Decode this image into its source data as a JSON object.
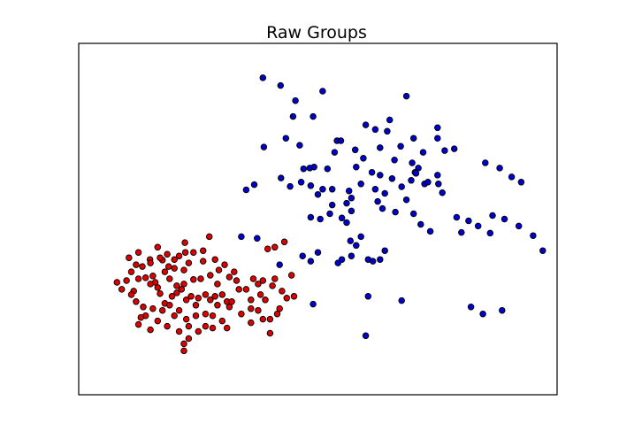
{
  "chart_data": {
    "type": "scatter",
    "title": "Raw Groups",
    "xlabel": "",
    "ylabel": "",
    "xlim": [
      0,
      100
    ],
    "ylim": [
      0,
      100
    ],
    "grid": false,
    "axes_ticks_visible": false,
    "series": [
      {
        "color": "#0000cc",
        "points": [
          [
            38.5,
            90.2
          ],
          [
            42.2,
            88.0
          ],
          [
            45.3,
            83.7
          ],
          [
            51.0,
            86.4
          ],
          [
            68.5,
            85.0
          ],
          [
            65.0,
            78.2
          ],
          [
            44.8,
            79.2
          ],
          [
            49.0,
            79.2
          ],
          [
            60.0,
            76.8
          ],
          [
            62.0,
            75.5
          ],
          [
            64.5,
            75.0
          ],
          [
            75.0,
            76.0
          ],
          [
            70.0,
            73.0
          ],
          [
            43.3,
            73.0
          ],
          [
            46.2,
            71.0
          ],
          [
            54.0,
            72.3
          ],
          [
            54.8,
            72.3
          ],
          [
            63.0,
            70.3
          ],
          [
            67.3,
            70.7
          ],
          [
            72.0,
            69.0
          ],
          [
            38.7,
            70.5
          ],
          [
            53.5,
            69.0
          ],
          [
            57.8,
            69.7
          ],
          [
            59.5,
            67.3
          ],
          [
            66.0,
            66.8
          ],
          [
            69.7,
            66.0
          ],
          [
            71.0,
            64.5
          ],
          [
            76.5,
            69.5
          ],
          [
            70.3,
            63.3
          ],
          [
            75.0,
            62.5
          ],
          [
            65.5,
            61.5
          ],
          [
            52.0,
            64.3
          ],
          [
            47.0,
            64.3
          ],
          [
            48.3,
            64.5
          ],
          [
            49.2,
            64.8
          ],
          [
            46.5,
            60.5
          ],
          [
            42.3,
            61.7
          ],
          [
            44.2,
            59.3
          ],
          [
            35.0,
            58.3
          ],
          [
            36.7,
            59.8
          ],
          [
            58.0,
            64.8
          ],
          [
            61.3,
            63.3
          ],
          [
            63.0,
            62.5
          ],
          [
            59.0,
            60.0
          ],
          [
            48.5,
            59.5
          ],
          [
            51.0,
            58.5
          ],
          [
            50.0,
            57.0
          ],
          [
            53.0,
            58.5
          ],
          [
            56.5,
            58.0
          ],
          [
            57.0,
            56.0
          ],
          [
            62.0,
            58.5
          ],
          [
            64.0,
            57.3
          ],
          [
            67.5,
            59.2
          ],
          [
            69.5,
            61.0
          ],
          [
            70.5,
            63.0
          ],
          [
            72.3,
            60.0
          ],
          [
            73.0,
            60.5
          ],
          [
            75.2,
            60.0
          ],
          [
            76.0,
            57.5
          ],
          [
            68.5,
            55.5
          ],
          [
            62.5,
            55.0
          ],
          [
            63.5,
            53.0
          ],
          [
            57.0,
            52.3
          ],
          [
            56.0,
            54.5
          ],
          [
            53.0,
            54.0
          ],
          [
            52.5,
            51.5
          ],
          [
            50.5,
            50.0
          ],
          [
            48.5,
            50.5
          ],
          [
            55.0,
            50.3
          ],
          [
            56.0,
            49.0
          ],
          [
            66.2,
            52.0
          ],
          [
            70.0,
            51.5
          ],
          [
            79.0,
            50.5
          ],
          [
            81.5,
            49.5
          ],
          [
            83.5,
            48.0
          ],
          [
            86.5,
            51.0
          ],
          [
            89.0,
            50.0
          ],
          [
            80.0,
            46.2
          ],
          [
            86.0,
            46.0
          ],
          [
            73.5,
            46.5
          ],
          [
            71.5,
            48.5
          ],
          [
            92.0,
            48.0
          ],
          [
            95.0,
            45.3
          ],
          [
            97.0,
            41.0
          ],
          [
            64.0,
            41.0
          ],
          [
            58.0,
            42.5
          ],
          [
            56.8,
            43.8
          ],
          [
            59.0,
            45.0
          ],
          [
            57.0,
            39.5
          ],
          [
            55.0,
            38.5
          ],
          [
            54.2,
            37.5
          ],
          [
            50.0,
            40.5
          ],
          [
            48.5,
            38.0
          ],
          [
            46.8,
            39.5
          ],
          [
            42.0,
            37.0
          ],
          [
            60.5,
            38.5
          ],
          [
            61.5,
            38.0
          ],
          [
            63.0,
            38.5
          ],
          [
            37.3,
            44.5
          ],
          [
            34.0,
            45.0
          ],
          [
            49.0,
            25.8
          ],
          [
            60.0,
            16.8
          ],
          [
            60.5,
            28.0
          ],
          [
            67.5,
            26.8
          ],
          [
            82.0,
            25.0
          ],
          [
            84.5,
            23.0
          ],
          [
            88.5,
            24.0
          ],
          [
            78.5,
            70.0
          ],
          [
            75.0,
            73.0
          ],
          [
            85.0,
            66.0
          ],
          [
            88.0,
            64.5
          ],
          [
            90.5,
            62.0
          ],
          [
            92.5,
            60.5
          ]
        ]
      },
      {
        "color": "#dd0000",
        "points": [
          [
            22.2,
            43.3
          ],
          [
            27.3,
            45.0
          ],
          [
            22.3,
            40.5
          ],
          [
            14.9,
            38.5
          ],
          [
            17.5,
            38.3
          ],
          [
            23.0,
            37.5
          ],
          [
            26.0,
            38.0
          ],
          [
            29.3,
            35.5
          ],
          [
            18.8,
            36.5
          ],
          [
            20.0,
            36.0
          ],
          [
            22.0,
            35.5
          ],
          [
            15.5,
            33.8
          ],
          [
            16.0,
            32.0
          ],
          [
            18.0,
            35.0
          ],
          [
            19.0,
            33.0
          ],
          [
            20.5,
            31.0
          ],
          [
            22.0,
            31.5
          ],
          [
            24.0,
            32.8
          ],
          [
            25.5,
            33.0
          ],
          [
            27.5,
            34.0
          ],
          [
            29.0,
            31.5
          ],
          [
            11.0,
            35.0
          ],
          [
            12.5,
            33.0
          ],
          [
            13.3,
            36.5
          ],
          [
            14.0,
            33.3
          ],
          [
            15.0,
            31.5
          ],
          [
            16.5,
            30.5
          ],
          [
            17.0,
            28.8
          ],
          [
            18.0,
            26.0
          ],
          [
            19.5,
            28.0
          ],
          [
            20.5,
            29.0
          ],
          [
            21.5,
            30.0
          ],
          [
            22.5,
            27.0
          ],
          [
            23.5,
            28.0
          ],
          [
            24.5,
            25.5
          ],
          [
            25.0,
            27.5
          ],
          [
            26.5,
            28.5
          ],
          [
            27.5,
            27.0
          ],
          [
            28.5,
            28.0
          ],
          [
            30.0,
            28.5
          ],
          [
            31.0,
            26.5
          ],
          [
            32.0,
            26.5
          ],
          [
            33.5,
            30.0
          ],
          [
            33.0,
            32.5
          ],
          [
            36.0,
            27.0
          ],
          [
            38.0,
            28.5
          ],
          [
            39.0,
            27.0
          ],
          [
            37.5,
            24.0
          ],
          [
            38.5,
            21.5
          ],
          [
            31.5,
            25.0
          ],
          [
            29.0,
            25.5
          ],
          [
            28.0,
            22.5
          ],
          [
            26.5,
            19.5
          ],
          [
            24.5,
            22.5
          ],
          [
            22.5,
            21.5
          ],
          [
            21.0,
            24.0
          ],
          [
            20.0,
            22.5
          ],
          [
            19.0,
            25.5
          ],
          [
            17.5,
            24.0
          ],
          [
            15.5,
            24.5
          ],
          [
            13.5,
            25.0
          ],
          [
            12.0,
            26.5
          ],
          [
            11.5,
            29.5
          ],
          [
            9.0,
            30.0
          ],
          [
            8.0,
            32.0
          ],
          [
            10.0,
            32.5
          ],
          [
            11.0,
            28.5
          ],
          [
            14.0,
            22.5
          ],
          [
            16.5,
            21.0
          ],
          [
            18.5,
            19.5
          ],
          [
            21.0,
            18.0
          ],
          [
            23.0,
            19.5
          ],
          [
            25.0,
            18.0
          ],
          [
            28.0,
            19.0
          ],
          [
            31.0,
            19.0
          ],
          [
            15.0,
            18.5
          ],
          [
            12.5,
            20.0
          ],
          [
            13.0,
            22.0
          ],
          [
            22.0,
            14.5
          ],
          [
            22.0,
            12.5
          ],
          [
            23.0,
            16.0
          ],
          [
            40.0,
            21.5
          ],
          [
            41.5,
            23.0
          ],
          [
            42.0,
            24.5
          ],
          [
            45.0,
            28.0
          ],
          [
            44.5,
            34.0
          ],
          [
            39.5,
            41.5
          ],
          [
            41.0,
            42.0
          ],
          [
            43.0,
            43.5
          ],
          [
            18.5,
            40.0
          ],
          [
            15.0,
            37.5
          ],
          [
            12.0,
            37.0
          ],
          [
            10.5,
            39.0
          ],
          [
            12.5,
            40.5
          ],
          [
            16.5,
            42.0
          ],
          [
            17.0,
            39.0
          ],
          [
            20.0,
            38.5
          ],
          [
            21.0,
            39.5
          ],
          [
            24.0,
            40.5
          ],
          [
            26.0,
            41.0
          ],
          [
            28.5,
            38.5
          ],
          [
            30.5,
            37.0
          ],
          [
            31.5,
            33.5
          ],
          [
            32.5,
            35.0
          ],
          [
            35.0,
            30.0
          ],
          [
            36.5,
            33.0
          ],
          [
            37.5,
            31.5
          ],
          [
            38.5,
            32.5
          ],
          [
            40.5,
            31.0
          ],
          [
            41.0,
            33.0
          ],
          [
            42.5,
            29.5
          ],
          [
            43.5,
            27.5
          ],
          [
            36.0,
            24.5
          ],
          [
            34.0,
            23.0
          ],
          [
            30.0,
            21.0
          ],
          [
            26.5,
            23.0
          ],
          [
            40.0,
            17.5
          ],
          [
            36.0,
            20.5
          ]
        ]
      }
    ]
  }
}
